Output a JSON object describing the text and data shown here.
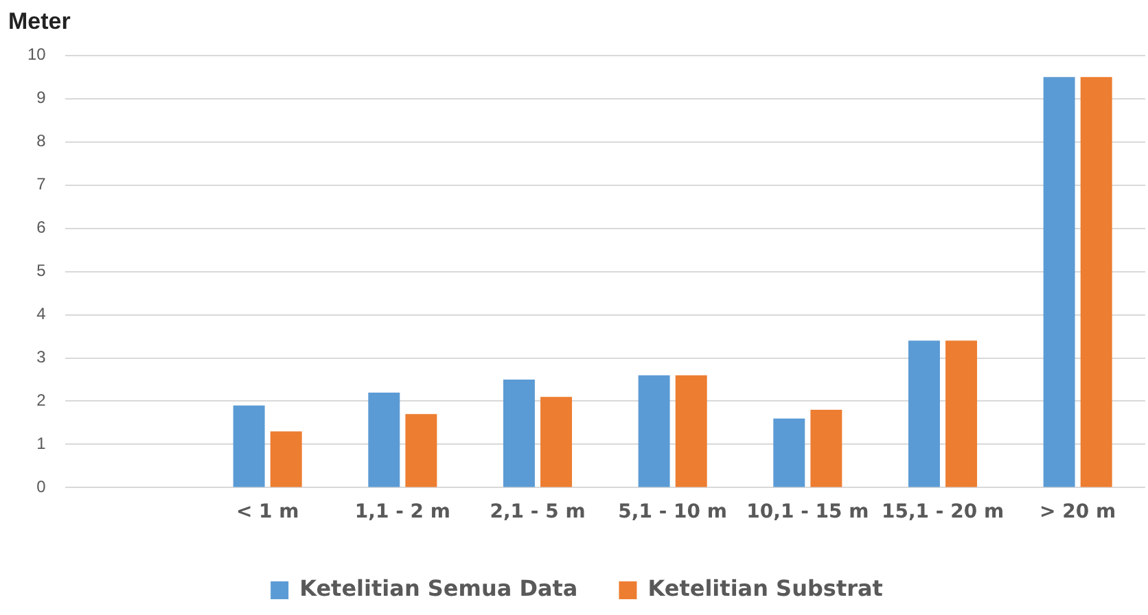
{
  "chart_data": {
    "type": "bar",
    "title": "Meter",
    "categories": [
      null,
      "< 1 m",
      "1,1 - 2 m",
      "2,1 - 5 m",
      "5,1 - 10 m",
      "10,1 - 15 m",
      "15,1 - 20 m",
      "> 20 m"
    ],
    "series": [
      {
        "name": "Ketelitian Semua Data",
        "color": "#5b9bd5",
        "values": [
          null,
          1.9,
          2.2,
          2.5,
          2.6,
          1.6,
          3.4,
          9.5
        ]
      },
      {
        "name": "Ketelitian Substrat",
        "color": "#ed7d31",
        "values": [
          null,
          1.3,
          1.7,
          2.1,
          2.6,
          1.8,
          3.4,
          9.5
        ]
      }
    ],
    "ylim": [
      0,
      10
    ],
    "yticks": [
      0,
      1,
      2,
      3,
      4,
      5,
      6,
      7,
      8,
      9,
      10
    ],
    "grid": "y",
    "legend": "bottom"
  }
}
